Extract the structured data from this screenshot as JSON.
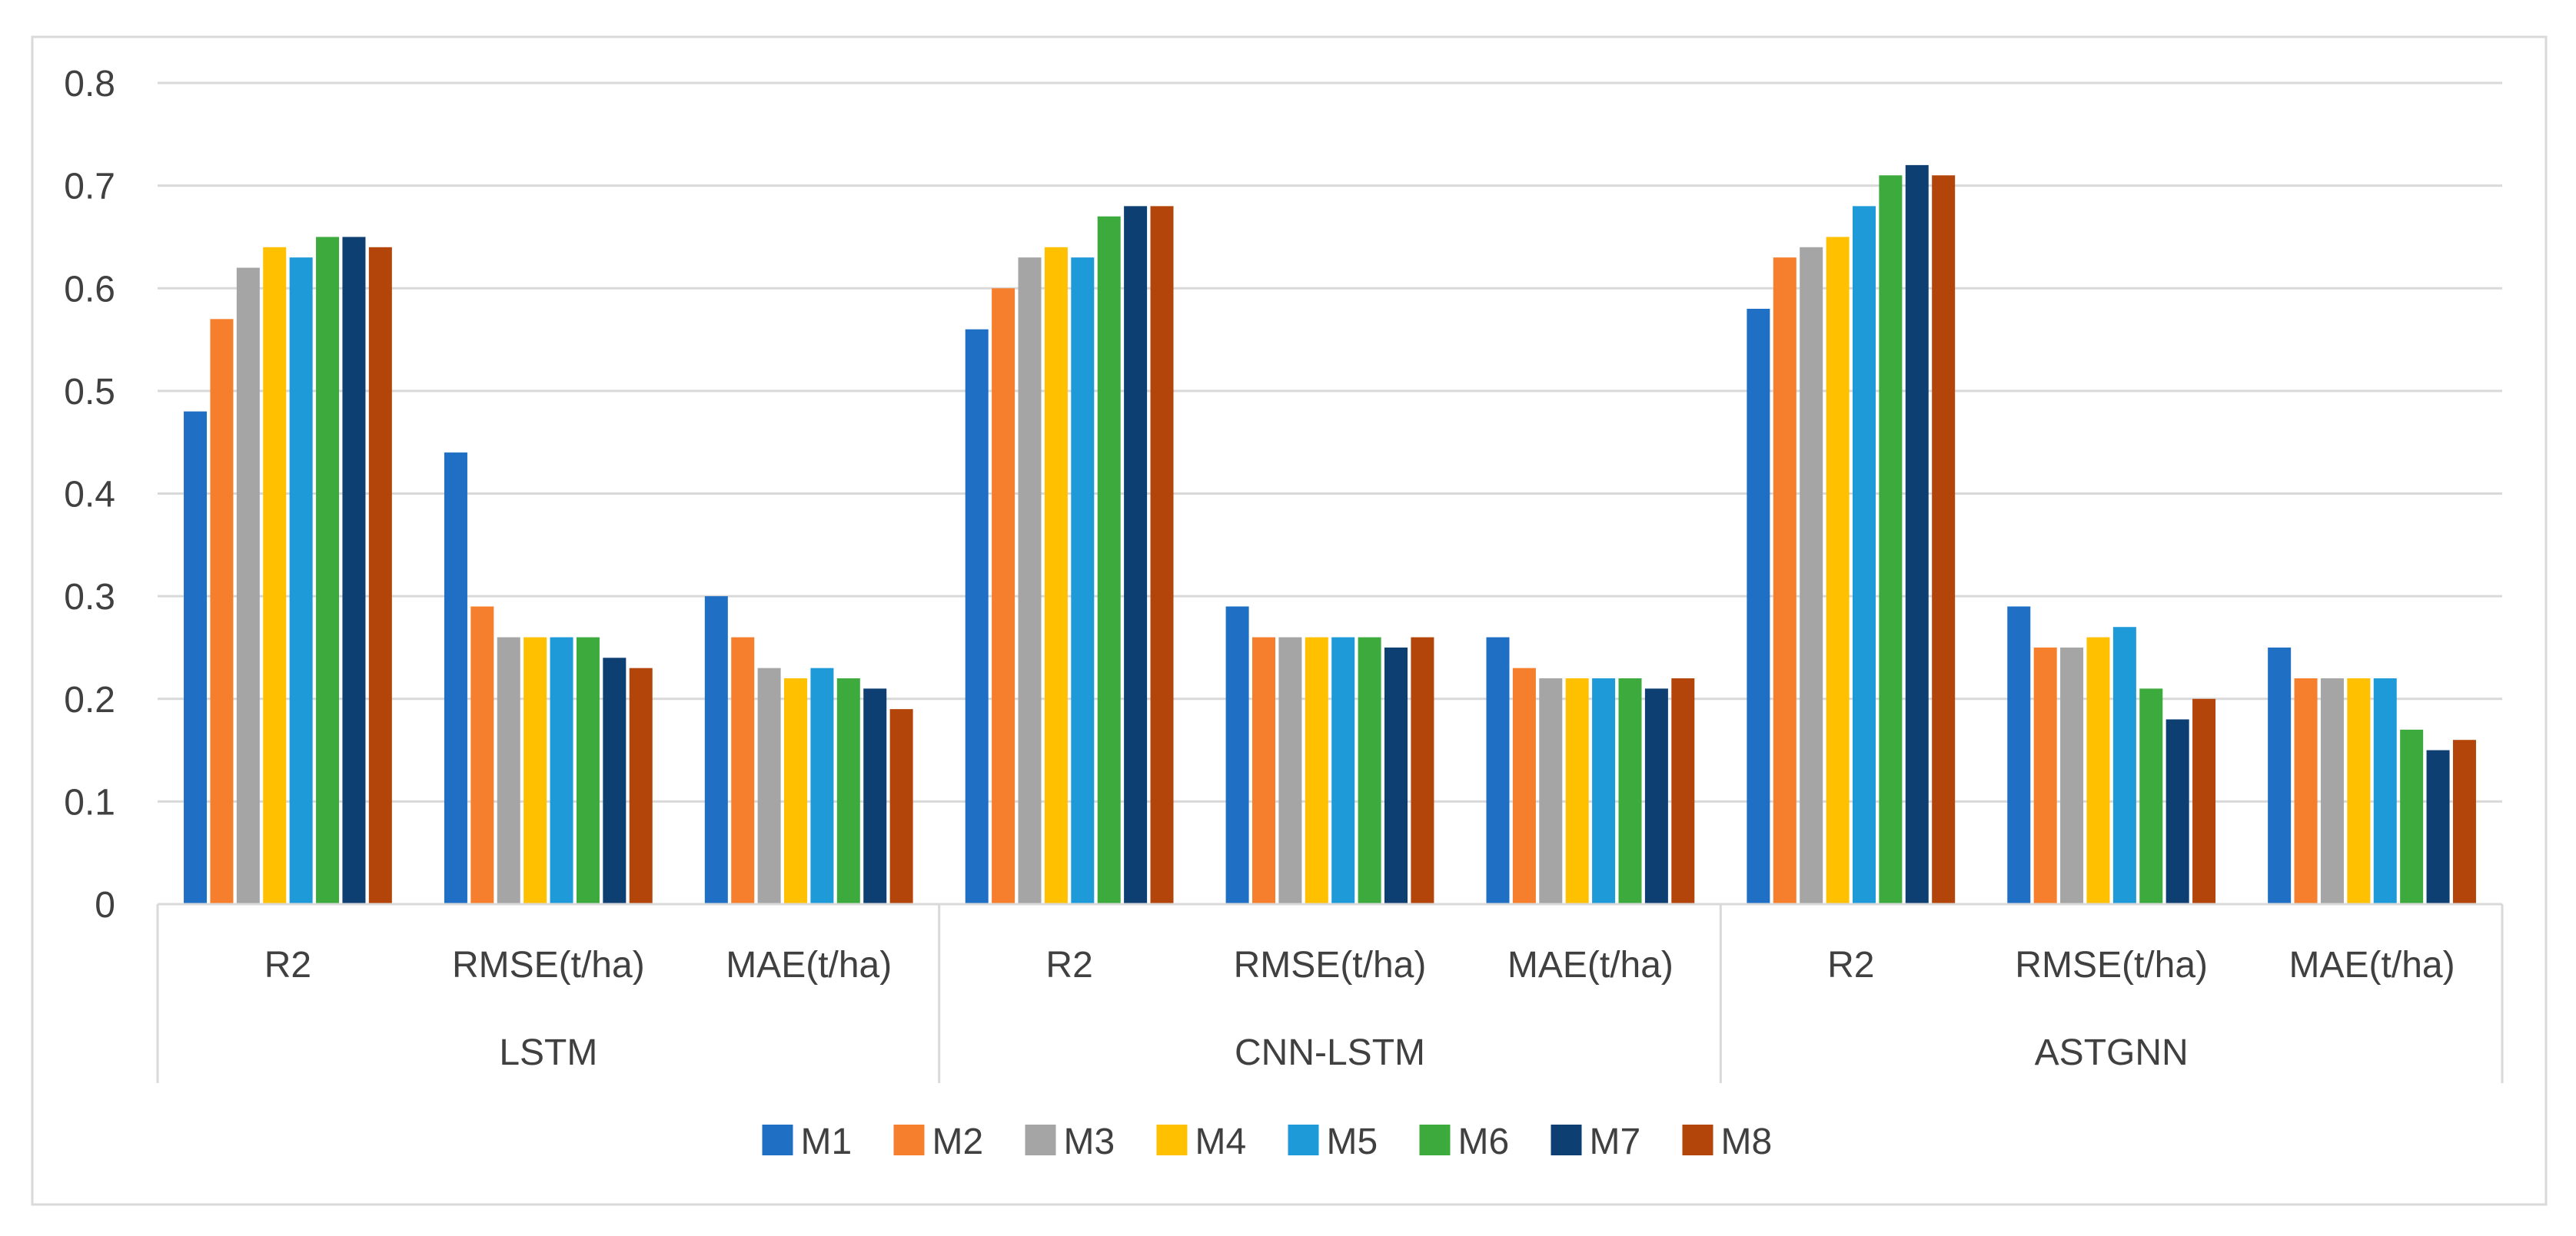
{
  "chart_data": {
    "type": "bar",
    "title": "",
    "xlabel": "",
    "ylabel": "",
    "ylim": [
      0,
      0.8
    ],
    "yticks": [
      0,
      0.1,
      0.2,
      0.3,
      0.4,
      0.5,
      0.6,
      0.7,
      0.8
    ],
    "ytick_labels": [
      "0",
      "0.1",
      "0.2",
      "0.3",
      "0.4",
      "0.5",
      "0.6",
      "0.7",
      "0.8"
    ],
    "grid": true,
    "legend_position": "bottom",
    "groups": [
      {
        "label": "LSTM",
        "categories": [
          "R2",
          "RMSE(t/ha)",
          "MAE(t/ha)"
        ]
      },
      {
        "label": "CNN-LSTM",
        "categories": [
          "R2",
          "RMSE(t/ha)",
          "MAE(t/ha)"
        ]
      },
      {
        "label": "ASTGNN",
        "categories": [
          "R2",
          "RMSE(t/ha)",
          "MAE(t/ha)"
        ]
      }
    ],
    "categories": [
      "LSTM R2",
      "LSTM RMSE(t/ha)",
      "LSTM MAE(t/ha)",
      "CNN-LSTM R2",
      "CNN-LSTM RMSE(t/ha)",
      "CNN-LSTM MAE(t/ha)",
      "ASTGNN R2",
      "ASTGNN RMSE(t/ha)",
      "ASTGNN MAE(t/ha)"
    ],
    "series": [
      {
        "name": "M1",
        "color": "#1f6fc5",
        "values": [
          0.48,
          0.44,
          0.3,
          0.56,
          0.29,
          0.26,
          0.58,
          0.29,
          0.25
        ]
      },
      {
        "name": "M2",
        "color": "#f57f2c",
        "values": [
          0.57,
          0.29,
          0.26,
          0.6,
          0.26,
          0.23,
          0.63,
          0.25,
          0.22
        ]
      },
      {
        "name": "M3",
        "color": "#a5a5a5",
        "values": [
          0.62,
          0.26,
          0.23,
          0.63,
          0.26,
          0.22,
          0.64,
          0.25,
          0.22
        ]
      },
      {
        "name": "M4",
        "color": "#ffc000",
        "values": [
          0.64,
          0.26,
          0.22,
          0.64,
          0.26,
          0.22,
          0.65,
          0.26,
          0.22
        ]
      },
      {
        "name": "M5",
        "color": "#1f9ad8",
        "values": [
          0.63,
          0.26,
          0.23,
          0.63,
          0.26,
          0.22,
          0.68,
          0.27,
          0.22
        ]
      },
      {
        "name": "M6",
        "color": "#3daa3d",
        "values": [
          0.65,
          0.26,
          0.22,
          0.67,
          0.26,
          0.22,
          0.71,
          0.21,
          0.17
        ]
      },
      {
        "name": "M7",
        "color": "#0e3f73",
        "values": [
          0.65,
          0.24,
          0.21,
          0.68,
          0.25,
          0.21,
          0.72,
          0.18,
          0.15
        ]
      },
      {
        "name": "M8",
        "color": "#b3450a",
        "values": [
          0.64,
          0.23,
          0.19,
          0.68,
          0.26,
          0.22,
          0.71,
          0.2,
          0.16
        ]
      }
    ]
  }
}
